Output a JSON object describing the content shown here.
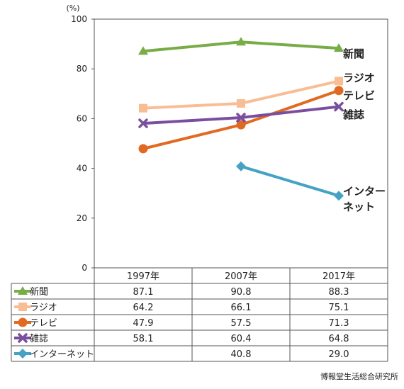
{
  "chart_data": {
    "type": "line",
    "unit": "(%)",
    "categories": [
      "1997年",
      "2007年",
      "2017年"
    ],
    "ylim": [
      0,
      100
    ],
    "yticks": [
      0,
      20,
      40,
      60,
      80,
      100
    ],
    "grid": false,
    "series": [
      {
        "name": "新聞",
        "label": "新聞",
        "color": "#77ac46",
        "marker": "triangle",
        "values": [
          87.1,
          90.8,
          88.3
        ],
        "display": [
          "87.1",
          "90.8",
          "88.3"
        ]
      },
      {
        "name": "ラジオ",
        "label": "ラジオ",
        "color": "#f9bd94",
        "marker": "square",
        "values": [
          64.2,
          66.1,
          75.1
        ],
        "display": [
          "64.2",
          "66.1",
          "75.1"
        ]
      },
      {
        "name": "テレビ",
        "label": "テレビ",
        "color": "#e06a22",
        "marker": "circle",
        "values": [
          47.9,
          57.5,
          71.3
        ],
        "display": [
          "47.9",
          "57.5",
          "71.3"
        ]
      },
      {
        "name": "雑誌",
        "label": "雑誌",
        "color": "#7a4e9e",
        "marker": "cross",
        "values": [
          58.1,
          60.4,
          64.8
        ],
        "display": [
          "58.1",
          "60.4",
          "64.8"
        ]
      },
      {
        "name": "インターネット",
        "label": "インター\nネット",
        "color": "#44a2c4",
        "marker": "diamond",
        "values": [
          null,
          40.8,
          29.0
        ],
        "display": [
          "",
          "40.8",
          "29.0"
        ]
      }
    ]
  },
  "source": "博報堂生活総合研究所"
}
